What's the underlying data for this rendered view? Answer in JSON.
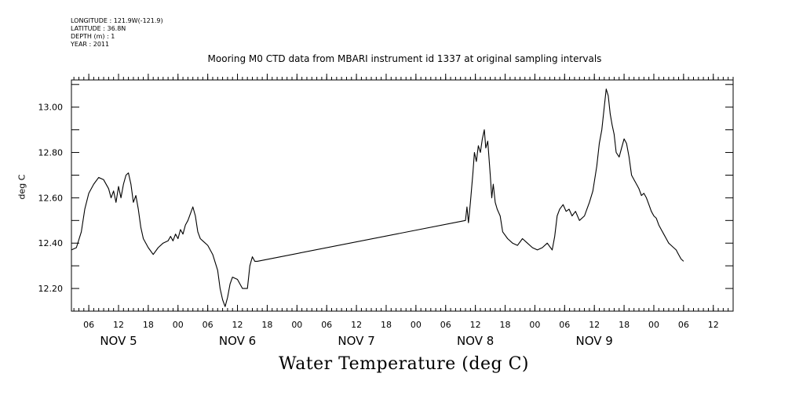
{
  "header": {
    "lines": [
      "LONGITUDE : 121.9W(-121.9)",
      "LATITUDE : 36.8N",
      "DEPTH (m) : 1",
      "YEAR : 2011"
    ]
  },
  "chart_data": {
    "type": "line",
    "title": "Mooring M0 CTD data from MBARI instrument id 1337 at original sampling intervals",
    "xlabel": "Water Temperature (deg C)",
    "ylabel": "deg C",
    "ylim": [
      12.1,
      13.12
    ],
    "yticks": [
      "12.20",
      "12.40",
      "12.60",
      "12.80",
      "13.00"
    ],
    "xlim_hours": [
      2.5,
      136
    ],
    "hour_ticks": [
      {
        "hour": 6,
        "label": "06"
      },
      {
        "hour": 12,
        "label": "12"
      },
      {
        "hour": 18,
        "label": "18"
      },
      {
        "hour": 24,
        "label": "00"
      },
      {
        "hour": 30,
        "label": "06"
      },
      {
        "hour": 36,
        "label": "12"
      },
      {
        "hour": 42,
        "label": "18"
      },
      {
        "hour": 48,
        "label": "00"
      },
      {
        "hour": 54,
        "label": "06"
      },
      {
        "hour": 60,
        "label": "12"
      },
      {
        "hour": 66,
        "label": "18"
      },
      {
        "hour": 72,
        "label": "00"
      },
      {
        "hour": 78,
        "label": "06"
      },
      {
        "hour": 84,
        "label": "12"
      },
      {
        "hour": 90,
        "label": "18"
      },
      {
        "hour": 96,
        "label": "00"
      },
      {
        "hour": 102,
        "label": "06"
      },
      {
        "hour": 108,
        "label": "12"
      },
      {
        "hour": 114,
        "label": "18"
      },
      {
        "hour": 120,
        "label": "00"
      },
      {
        "hour": 126,
        "label": "06"
      },
      {
        "hour": 132,
        "label": "12"
      }
    ],
    "day_labels": [
      {
        "hour": 12,
        "label": "NOV  5"
      },
      {
        "hour": 36,
        "label": "NOV  6"
      },
      {
        "hour": 60,
        "label": "NOV  7"
      },
      {
        "hour": 84,
        "label": "NOV  8"
      },
      {
        "hour": 108,
        "label": "NOV  9"
      }
    ],
    "series": [
      {
        "points": [
          [
            2.5,
            12.37
          ],
          [
            3.5,
            12.38
          ],
          [
            4.5,
            12.45
          ],
          [
            5.2,
            12.55
          ],
          [
            6,
            12.62
          ],
          [
            7,
            12.66
          ],
          [
            8,
            12.69
          ],
          [
            9,
            12.68
          ],
          [
            10,
            12.64
          ],
          [
            10.5,
            12.6
          ],
          [
            11,
            12.63
          ],
          [
            11.5,
            12.58
          ],
          [
            12,
            12.65
          ],
          [
            12.5,
            12.6
          ],
          [
            13,
            12.66
          ],
          [
            13.5,
            12.7
          ],
          [
            14,
            12.71
          ],
          [
            14.5,
            12.66
          ],
          [
            15,
            12.58
          ],
          [
            15.5,
            12.61
          ],
          [
            16,
            12.55
          ],
          [
            16.5,
            12.47
          ],
          [
            17,
            12.42
          ],
          [
            18,
            12.38
          ],
          [
            19,
            12.35
          ],
          [
            20,
            12.38
          ],
          [
            21,
            12.4
          ],
          [
            22,
            12.41
          ],
          [
            22.5,
            12.43
          ],
          [
            23,
            12.41
          ],
          [
            23.5,
            12.44
          ],
          [
            24,
            12.42
          ],
          [
            24.5,
            12.46
          ],
          [
            25,
            12.44
          ],
          [
            25.5,
            12.48
          ],
          [
            26,
            12.5
          ],
          [
            26.5,
            12.53
          ],
          [
            27,
            12.56
          ],
          [
            27.5,
            12.52
          ],
          [
            28,
            12.45
          ],
          [
            28.5,
            12.42
          ],
          [
            29,
            12.41
          ],
          [
            30,
            12.39
          ],
          [
            31,
            12.35
          ],
          [
            32,
            12.28
          ],
          [
            32.5,
            12.2
          ],
          [
            33,
            12.15
          ],
          [
            33.5,
            12.12
          ],
          [
            34,
            12.16
          ],
          [
            34.5,
            12.22
          ],
          [
            35,
            12.25
          ],
          [
            36,
            12.24
          ],
          [
            37,
            12.2
          ],
          [
            38,
            12.2
          ],
          [
            38.5,
            12.3
          ],
          [
            39,
            12.34
          ],
          [
            39.5,
            12.32
          ],
          [
            40,
            12.32
          ],
          [
            82,
            12.5
          ],
          [
            82.3,
            12.56
          ],
          [
            82.6,
            12.49
          ],
          [
            83,
            12.58
          ],
          [
            83.5,
            12.71
          ],
          [
            83.8,
            12.8
          ],
          [
            84.2,
            12.76
          ],
          [
            84.6,
            12.83
          ],
          [
            85,
            12.8
          ],
          [
            85.4,
            12.86
          ],
          [
            85.8,
            12.9
          ],
          [
            86.1,
            12.82
          ],
          [
            86.5,
            12.85
          ],
          [
            87,
            12.7
          ],
          [
            87.3,
            12.6
          ],
          [
            87.6,
            12.66
          ],
          [
            88,
            12.58
          ],
          [
            88.4,
            12.55
          ],
          [
            89,
            12.52
          ],
          [
            89.5,
            12.45
          ],
          [
            90.5,
            12.42
          ],
          [
            91.5,
            12.4
          ],
          [
            92.5,
            12.39
          ],
          [
            93.5,
            12.42
          ],
          [
            94.5,
            12.4
          ],
          [
            95.5,
            12.38
          ],
          [
            96.5,
            12.37
          ],
          [
            97.5,
            12.38
          ],
          [
            98.5,
            12.4
          ],
          [
            99.5,
            12.37
          ],
          [
            100,
            12.43
          ],
          [
            100.5,
            12.52
          ],
          [
            101,
            12.55
          ],
          [
            101.7,
            12.57
          ],
          [
            102.3,
            12.54
          ],
          [
            102.9,
            12.55
          ],
          [
            103.5,
            12.52
          ],
          [
            104.2,
            12.54
          ],
          [
            105,
            12.5
          ],
          [
            106,
            12.52
          ],
          [
            106.5,
            12.55
          ],
          [
            107,
            12.58
          ],
          [
            107.7,
            12.63
          ],
          [
            108.5,
            12.74
          ],
          [
            109,
            12.84
          ],
          [
            109.5,
            12.9
          ],
          [
            110,
            13.0
          ],
          [
            110.4,
            13.08
          ],
          [
            110.8,
            13.05
          ],
          [
            111.2,
            12.97
          ],
          [
            111.6,
            12.92
          ],
          [
            112,
            12.88
          ],
          [
            112.4,
            12.8
          ],
          [
            113,
            12.78
          ],
          [
            113.5,
            12.82
          ],
          [
            114,
            12.86
          ],
          [
            114.5,
            12.84
          ],
          [
            115,
            12.78
          ],
          [
            115.5,
            12.7
          ],
          [
            116,
            12.68
          ],
          [
            116.5,
            12.66
          ],
          [
            117,
            12.64
          ],
          [
            117.5,
            12.61
          ],
          [
            118,
            12.62
          ],
          [
            118.5,
            12.6
          ],
          [
            119,
            12.57
          ],
          [
            119.5,
            12.54
          ],
          [
            120,
            12.52
          ],
          [
            120.5,
            12.51
          ],
          [
            121,
            12.48
          ],
          [
            121.5,
            12.46
          ],
          [
            122,
            12.44
          ],
          [
            122.5,
            12.42
          ],
          [
            123,
            12.4
          ],
          [
            123.5,
            12.39
          ],
          [
            124,
            12.38
          ],
          [
            124.5,
            12.37
          ],
          [
            125,
            12.35
          ],
          [
            125.5,
            12.33
          ],
          [
            126,
            12.32
          ]
        ]
      }
    ]
  }
}
